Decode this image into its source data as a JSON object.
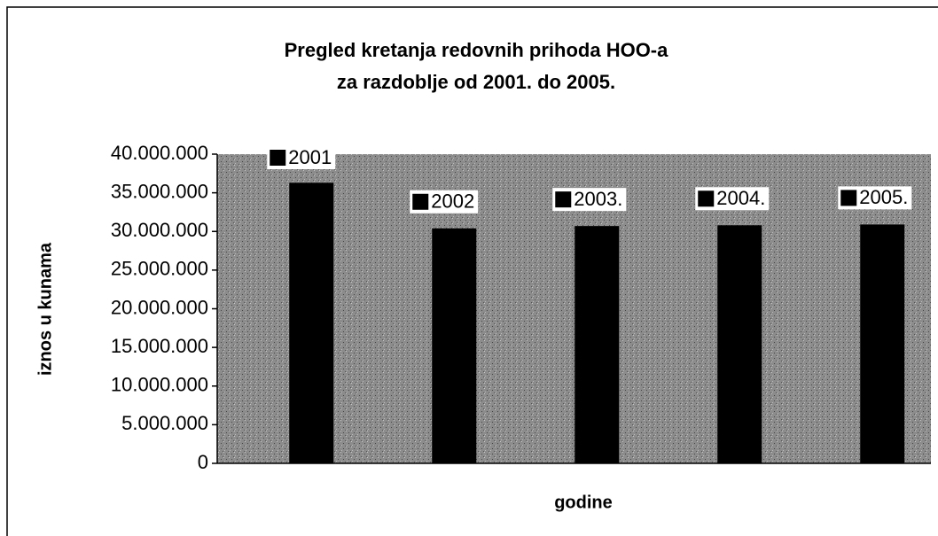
{
  "chart_data": {
    "type": "bar",
    "title": [
      "Pregled kretanja redovnih prihoda HOO-a",
      "za razdoblje od 2001. do 2005."
    ],
    "y_label": "iznos u kunama",
    "x_label": "godine",
    "categories": [
      null
    ],
    "series": [
      {
        "name": "2001",
        "color": "#000000",
        "values": [
          36300000
        ]
      },
      {
        "name": "2002",
        "color": "#000000",
        "values": [
          30400000
        ]
      },
      {
        "name": "2003.",
        "color": "#000000",
        "values": [
          30700000
        ]
      },
      {
        "name": "2004.",
        "color": "#000000",
        "values": [
          30800000
        ]
      },
      {
        "name": "2005.",
        "color": "#000000",
        "values": [
          30900000
        ]
      }
    ],
    "ylim": [
      0,
      40000000
    ],
    "yticks": [
      0,
      {
        "value": 5000000,
        "label": "5.000.000"
      },
      {
        "value": 10000000,
        "label": "10.000.000"
      },
      {
        "value": 15000000,
        "label": "15.000.000"
      },
      {
        "value": 20000000,
        "label": "20.000.000"
      },
      {
        "value": 25000000,
        "label": "25.000.000"
      },
      {
        "value": 30000000,
        "label": "30.000.000"
      },
      {
        "value": 35000000,
        "label": "35.000.000"
      },
      {
        "value": 40000000,
        "label": "40.000.000"
      }
    ],
    "plot_background": "#8c8c8c"
  }
}
